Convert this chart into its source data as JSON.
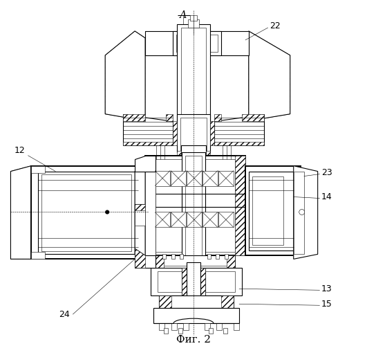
{
  "title": "Фиг. 2",
  "label_A": "А",
  "bg_color": "#ffffff",
  "line_color": "#000000",
  "lw_thin": 0.4,
  "lw_med": 0.8,
  "lw_thick": 1.4
}
